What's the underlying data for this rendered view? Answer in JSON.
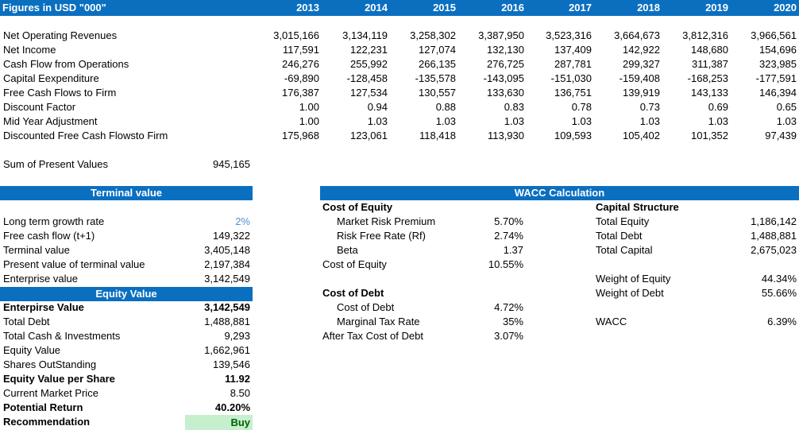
{
  "header": {
    "title": "Figures in USD \"000\"",
    "years": [
      2013,
      2014,
      2015,
      2016,
      2017,
      2018,
      2019,
      2020
    ]
  },
  "projections": {
    "rows": [
      {
        "label": "Net Operating Revenues",
        "values": [
          "3,015,166",
          "3,134,119",
          "3,258,302",
          "3,387,950",
          "3,523,316",
          "3,664,673",
          "3,812,316",
          "3,966,561"
        ]
      },
      {
        "label": "Net Income",
        "values": [
          "117,591",
          "122,231",
          "127,074",
          "132,130",
          "137,409",
          "142,922",
          "148,680",
          "154,696"
        ]
      },
      {
        "label": "Cash Flow from Operations",
        "values": [
          "246,276",
          "255,992",
          "266,135",
          "276,725",
          "287,781",
          "299,327",
          "311,387",
          "323,985"
        ]
      },
      {
        "label": "Capital Eexpenditure",
        "values": [
          "-69,890",
          "-128,458",
          "-135,578",
          "-143,095",
          "-151,030",
          "-159,408",
          "-168,253",
          "-177,591"
        ]
      },
      {
        "label": "Free Cash Flows to Firm",
        "values": [
          "176,387",
          "127,534",
          "130,557",
          "133,630",
          "136,751",
          "139,919",
          "143,133",
          "146,394"
        ]
      },
      {
        "label": "Discount Factor",
        "values": [
          "1.00",
          "0.94",
          "0.88",
          "0.83",
          "0.78",
          "0.73",
          "0.69",
          "0.65"
        ]
      },
      {
        "label": "Mid Year Adjustment",
        "values": [
          "1.00",
          "1.03",
          "1.03",
          "1.03",
          "1.03",
          "1.03",
          "1.03",
          "1.03"
        ]
      },
      {
        "label": "Discounted Free Cash Flowsto Firm",
        "values": [
          "175,968",
          "123,061",
          "118,418",
          "113,930",
          "109,593",
          "105,402",
          "101,352",
          "97,439"
        ]
      }
    ]
  },
  "sum_of_present_values": {
    "label": "Sum of Present Values",
    "value": "945,165"
  },
  "terminal_value": {
    "title": "Terminal value",
    "rows": [
      {
        "label": "Long term growth rate",
        "value": "2%",
        "color": "#4f8fd6"
      },
      {
        "label": "Free cash flow (t+1)",
        "value": "149,322"
      },
      {
        "label": "Terminal value",
        "value": "3,405,148"
      },
      {
        "label": "Present value of terminal value",
        "value": "2,197,384"
      },
      {
        "label": "Enterprise value",
        "value": "3,142,549"
      }
    ]
  },
  "equity_value": {
    "title": "Equity Value",
    "rows": [
      {
        "label": "Enterpirse Value",
        "value": "3,142,549",
        "bold": true
      },
      {
        "label": "Total Debt",
        "value": "1,488,881"
      },
      {
        "label": "Total Cash & Investments",
        "value": "9,293"
      },
      {
        "label": "Equity Value",
        "value": "1,662,961"
      },
      {
        "label": "Shares OutStanding",
        "value": "139,546"
      },
      {
        "label": "Equity Value per Share",
        "value": "11.92",
        "bold": true
      },
      {
        "label": "Current Market Price",
        "value": "8.50"
      },
      {
        "label": "Potential Return",
        "value": "40.20%",
        "bold": true
      },
      {
        "label": "Recommendation",
        "value": "Buy",
        "bold": true,
        "highlight": "#c6efce",
        "color": "#006100"
      }
    ]
  },
  "wacc": {
    "title": "WACC Calculation",
    "left": [
      {
        "label": "Cost of Equity",
        "bold": true
      },
      {
        "label": "Market Risk Premium",
        "value": "5.70%",
        "indent": true
      },
      {
        "label": "Risk Free Rate (Rf)",
        "value": "2.74%",
        "indent": true
      },
      {
        "label": "Beta",
        "value": "1.37",
        "indent": true
      },
      {
        "label": "Cost of Equity",
        "value": "10.55%"
      },
      {
        "label": "Cost of Debt",
        "bold": true
      },
      {
        "label": "Cost of Debt",
        "value": "4.72%",
        "indent": true
      },
      {
        "label": "Marginal Tax Rate",
        "value": "35%",
        "indent": true
      },
      {
        "label": "After Tax Cost of Debt",
        "value": "3.07%"
      }
    ],
    "right": [
      {
        "label": "Capital Structure",
        "bold": true
      },
      {
        "label": "Total Equity",
        "value": "1,186,142"
      },
      {
        "label": "Total Debt",
        "value": "1,488,881"
      },
      {
        "label": "Total Capital",
        "value": "2,675,023"
      },
      {
        "label": "Weight of Equity",
        "value": "44.34%"
      },
      {
        "label": "Weight of Debt",
        "value": "55.66%"
      },
      {
        "label": "WACC",
        "value": "6.39%"
      }
    ]
  }
}
